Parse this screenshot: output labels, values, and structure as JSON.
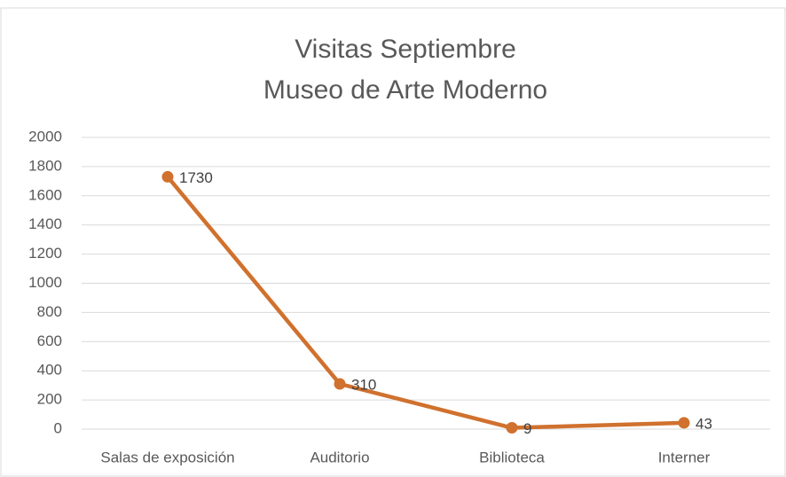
{
  "chart_data": {
    "type": "line",
    "title": [
      "Visitas Septiembre",
      "Museo de Arte Moderno"
    ],
    "categories": [
      "Salas de exposición",
      "Auditorio",
      "Biblioteca",
      "Interner"
    ],
    "values": [
      1730,
      310,
      9,
      43
    ],
    "color": "#d0712e",
    "ylim": [
      0,
      2000
    ],
    "yticks": [
      0,
      200,
      400,
      600,
      800,
      1000,
      1200,
      1400,
      1600,
      1800,
      2000
    ],
    "grid": true
  }
}
